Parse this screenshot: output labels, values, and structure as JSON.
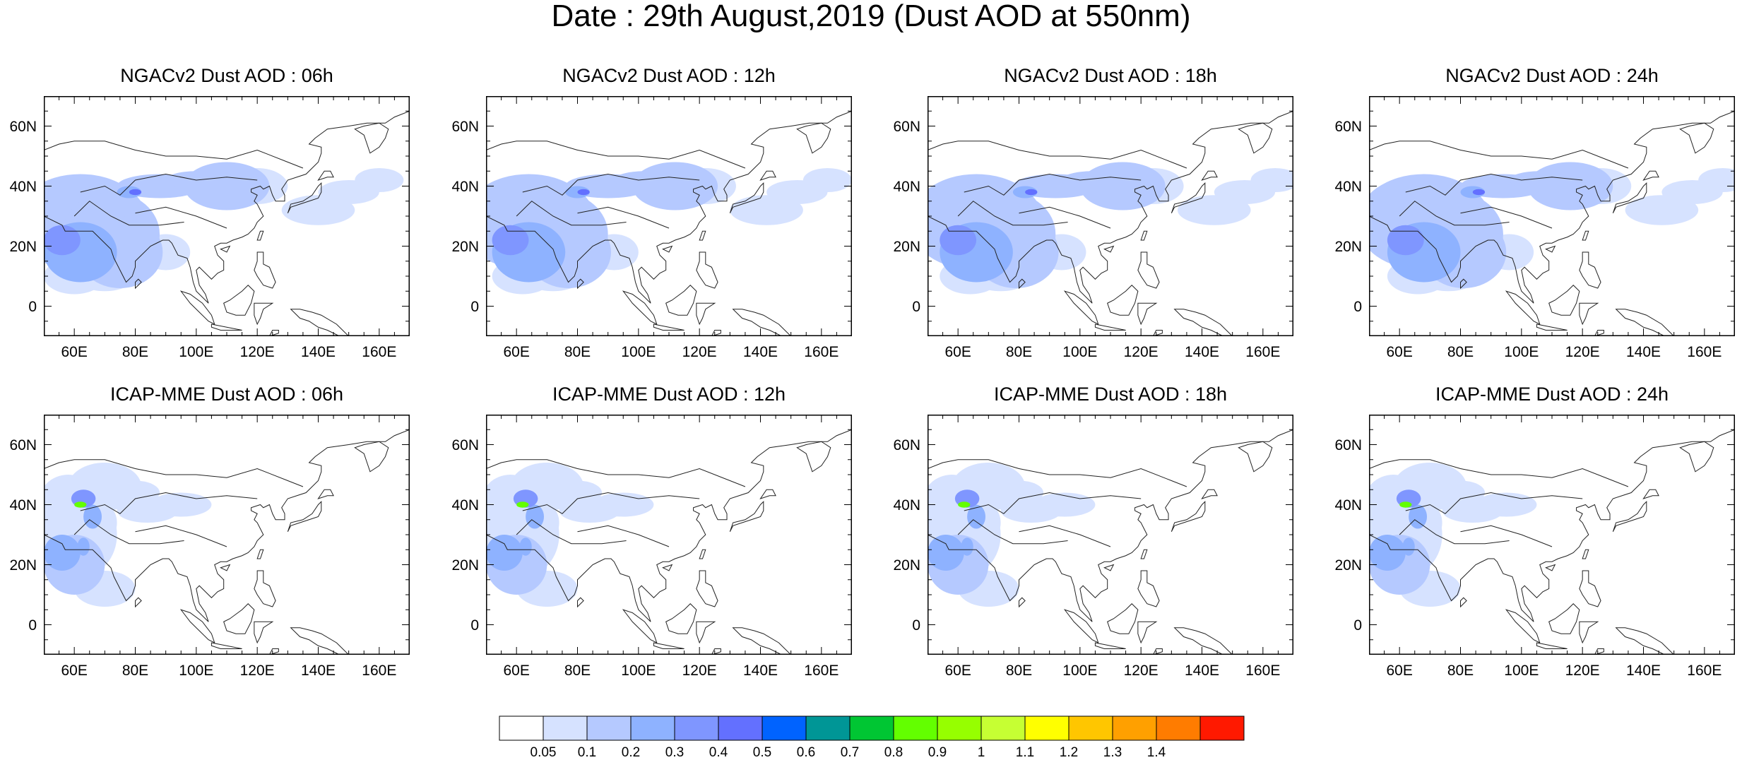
{
  "title": "Date : 29th August,2019 (Dust AOD at 550nm)",
  "panel_titles": [
    "NGACv2 Dust AOD : 06h",
    "NGACv2 Dust AOD : 12h",
    "NGACv2 Dust AOD : 18h",
    "NGACv2 Dust AOD : 24h",
    "ICAP-MME Dust AOD : 06h",
    "ICAP-MME Dust AOD : 12h",
    "ICAP-MME Dust AOD : 18h",
    "ICAP-MME Dust AOD : 24h"
  ],
  "map": {
    "lon_range": [
      50,
      170
    ],
    "lat_range": [
      -10,
      70
    ],
    "lat_ticks": [
      "60N",
      "40N",
      "20N",
      "0"
    ],
    "lat_tick_values": [
      60,
      40,
      20,
      0
    ],
    "lon_ticks": [
      "60E",
      "80E",
      "100E",
      "120E",
      "140E",
      "160E"
    ],
    "lon_tick_values": [
      60,
      80,
      100,
      120,
      140,
      160
    ]
  },
  "colorbar": {
    "labels": [
      "0.05",
      "0.1",
      "0.2",
      "0.3",
      "0.4",
      "0.5",
      "0.6",
      "0.7",
      "0.8",
      "0.9",
      "1",
      "1.1",
      "1.2",
      "1.3",
      "1.4"
    ],
    "colors": [
      "#ffffff",
      "#d6e2ff",
      "#b5c9ff",
      "#8eb2ff",
      "#7f96ff",
      "#6370ff",
      "#0063ff",
      "#009696",
      "#00c633",
      "#63ff00",
      "#96ff00",
      "#c6ff33",
      "#ffff00",
      "#ffc600",
      "#ffa000",
      "#ff7c00",
      "#ff1900"
    ]
  }
}
